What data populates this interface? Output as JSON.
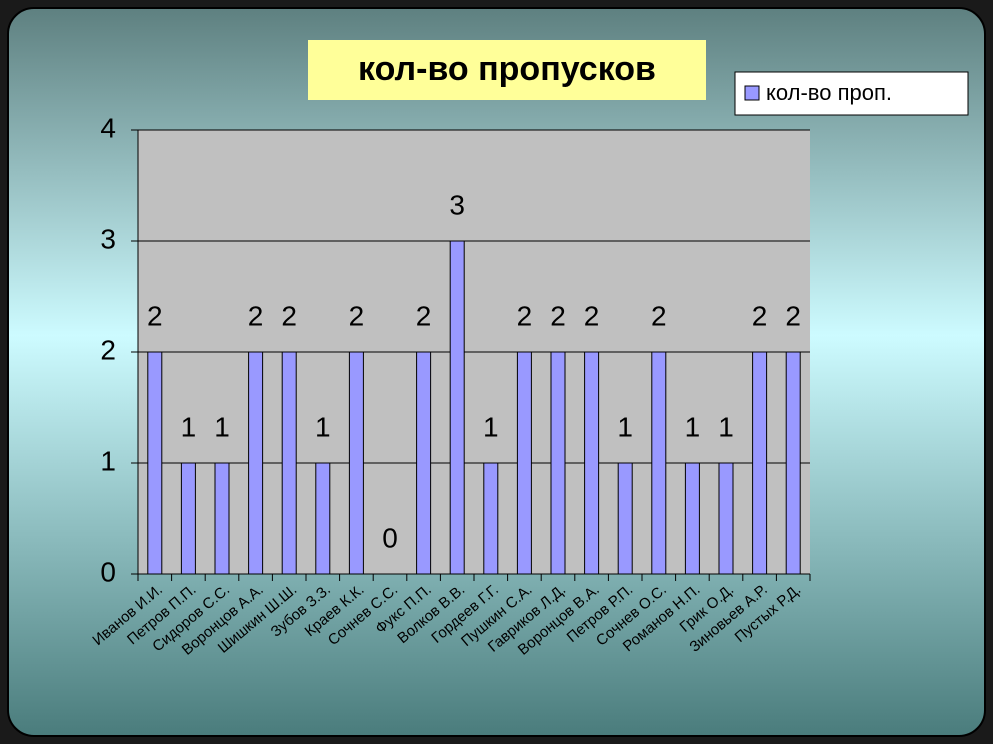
{
  "chart_data": {
    "type": "bar",
    "title": "кол-во пропусков",
    "categories": [
      "Иванов И.И.",
      "Петров П.П.",
      "Сидоров С.С.",
      "Воронцов А.А.",
      "Шишкин Ш.Ш.",
      "Зубов З.З.",
      "Краев К.К.",
      "Сочнев С.С.",
      "Фукс П.П.",
      "Волков В.В.",
      "Гордеев Г.Г.",
      "Пушкин С.А.",
      "Гавриков Л.Д.",
      "Воронцов В.А.",
      "Петров Р.П.",
      "Сочнев О.С.",
      "Романов Н.П.",
      "Грик О.Д.",
      "Зиновьев А.Р.",
      "Пустых Р.Д."
    ],
    "series": [
      {
        "name": "кол-во проп.",
        "color": "#9999ff",
        "values": [
          2,
          1,
          1,
          2,
          2,
          1,
          2,
          0,
          2,
          3,
          1,
          2,
          2,
          2,
          1,
          2,
          1,
          1,
          2,
          2
        ]
      }
    ],
    "ylim": [
      0,
      4
    ],
    "yticks": [
      0,
      1,
      2,
      3,
      4
    ],
    "grid": true,
    "legend": "top-right"
  }
}
